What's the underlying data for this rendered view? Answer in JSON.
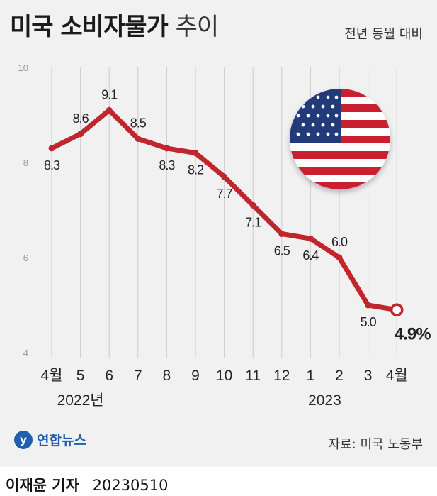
{
  "title_bold": "미국 소비자물가",
  "title_light": "추이",
  "subtitle": "전년 동월 대비",
  "source": "자료: 미국 노동부",
  "logo_text": "연합뉴스",
  "byline": {
    "name": "이재윤 기자",
    "date": "20230510"
  },
  "colors": {
    "line": "#c0262b",
    "background": "#f1f1f1",
    "gridline": "#cccccc"
  },
  "chart_data": {
    "type": "line",
    "categories": [
      "4월",
      "5",
      "6",
      "7",
      "8",
      "9",
      "10",
      "11",
      "12",
      "1",
      "2",
      "3",
      "4월"
    ],
    "year_labels": [
      "2022년",
      "2023"
    ],
    "values": [
      8.3,
      8.6,
      9.1,
      8.5,
      8.3,
      8.2,
      7.7,
      7.1,
      6.5,
      6.4,
      6.0,
      5.0,
      4.9
    ],
    "value_labels": [
      "8.3",
      "8.6",
      "9.1",
      "8.5",
      "8.3",
      "8.2",
      "7.7",
      "7.1",
      "6.5",
      "6.4",
      "6.0",
      "5.0",
      "4.9%"
    ],
    "ylim": [
      4,
      10
    ],
    "yticks": [
      "4",
      "6",
      "8",
      "10"
    ],
    "grid": "vertical",
    "title": "미국 소비자물가 추이",
    "xlabel": "",
    "ylabel": ""
  }
}
